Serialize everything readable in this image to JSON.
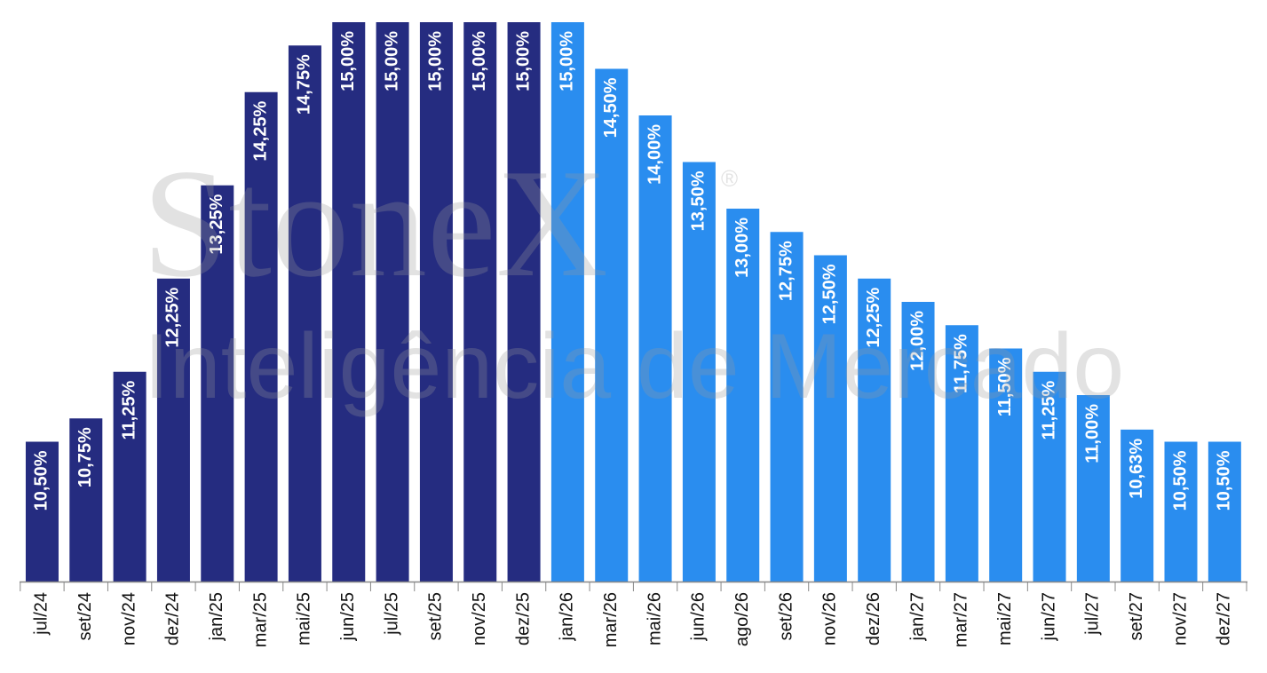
{
  "chart_data": {
    "type": "bar",
    "watermark": [
      "StoneX",
      "®",
      "Inteligência de Mercado"
    ],
    "categories": [
      "jul/24",
      "set/24",
      "nov/24",
      "dez/24",
      "jan/25",
      "mar/25",
      "mai/25",
      "jun/25",
      "jul/25",
      "set/25",
      "nov/25",
      "dez/25",
      "jan/26",
      "mar/26",
      "mai/26",
      "jun/26",
      "ago/26",
      "set/26",
      "nov/26",
      "dez/26",
      "jan/27",
      "mar/27",
      "mai/27",
      "jun/27",
      "jul/27",
      "set/27",
      "nov/27",
      "dez/27"
    ],
    "values": [
      10.5,
      10.75,
      11.25,
      12.25,
      13.25,
      14.25,
      14.75,
      15,
      15,
      15,
      15,
      15,
      15,
      14.5,
      14,
      13.5,
      13,
      12.75,
      12.5,
      12.25,
      12,
      11.75,
      11.5,
      11.25,
      11,
      10.63,
      10.5,
      10.5
    ],
    "value_labels": [
      "10,50%",
      "10,75%",
      "11,25%",
      "12,25%",
      "13,25%",
      "14,25%",
      "14,75%",
      "15,00%",
      "15,00%",
      "15,00%",
      "15,00%",
      "15,00%",
      "15,00%",
      "14,50%",
      "14,00%",
      "13,50%",
      "13,00%",
      "12,75%",
      "12,50%",
      "12,25%",
      "12,00%",
      "11,75%",
      "11,50%",
      "11,25%",
      "11,00%",
      "10,63%",
      "10,50%",
      "10,50%"
    ],
    "colors": [
      "#252c80",
      "#252c80",
      "#252c80",
      "#252c80",
      "#252c80",
      "#252c80",
      "#252c80",
      "#252c80",
      "#252c80",
      "#252c80",
      "#252c80",
      "#252c80",
      "#2a8def",
      "#2a8def",
      "#2a8def",
      "#2a8def",
      "#2a8def",
      "#2a8def",
      "#2a8def",
      "#2a8def",
      "#2a8def",
      "#2a8def",
      "#2a8def",
      "#2a8def",
      "#2a8def",
      "#2a8def",
      "#2a8def",
      "#2a8def"
    ],
    "ylim": [
      9,
      15
    ]
  }
}
